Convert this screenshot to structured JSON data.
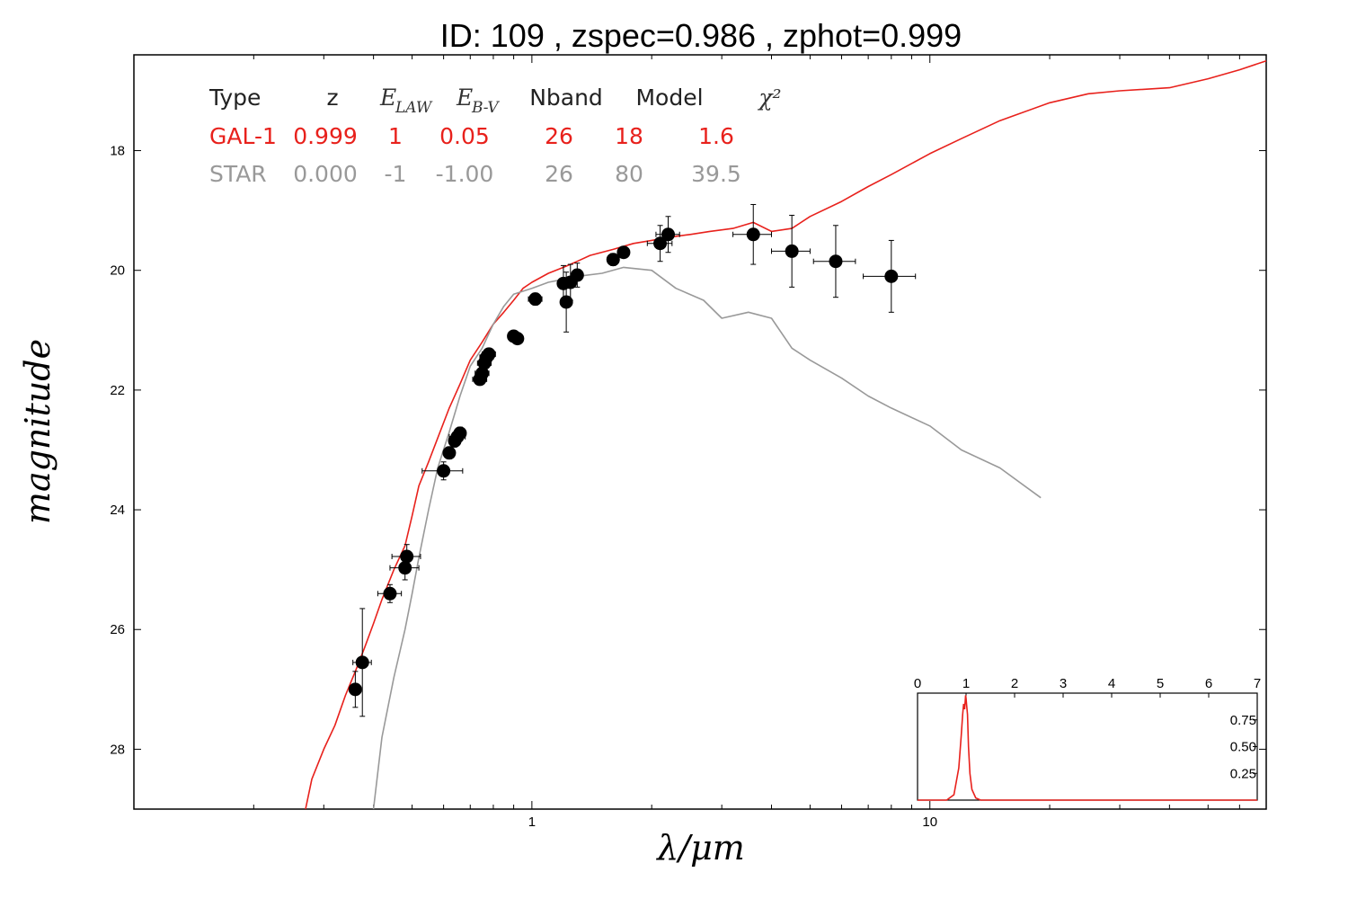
{
  "chart_data": {
    "type": "scatter",
    "title": "ID:  109   , zspec=0.986 , zphot=0.999",
    "xlabel": "λ/μm",
    "ylabel": "magnitude",
    "x_scale": "log",
    "xlim": [
      0.1,
      70
    ],
    "ylim": [
      29,
      16.4
    ],
    "x_tick_labels": [
      "1",
      "10"
    ],
    "x_ticks": [
      1,
      10
    ],
    "y_ticks": [
      18,
      20,
      22,
      24,
      26,
      28
    ],
    "y_tick_labels": [
      "18",
      "20",
      "22",
      "24",
      "26",
      "28"
    ],
    "grid": false,
    "legend_table": {
      "header": [
        "Type",
        "z",
        "E_LAW",
        "E_B-V",
        "Nband",
        "Model",
        "χ²"
      ],
      "rows": [
        {
          "cells": [
            "GAL-1",
            "0.999",
            "1",
            "0.05",
            "26",
            "18",
            "1.6"
          ],
          "color": "#e8211c"
        },
        {
          "cells": [
            "STAR",
            "0.000",
            "-1",
            "-1.00",
            "26",
            "80",
            "39.5"
          ],
          "color": "#999999"
        }
      ]
    },
    "series": [
      {
        "kind": "model",
        "color": "#e8211c",
        "x": [
          0.27,
          0.28,
          0.3,
          0.32,
          0.34,
          0.36,
          0.38,
          0.4,
          0.42,
          0.45,
          0.48,
          0.5,
          0.52,
          0.55,
          0.58,
          0.62,
          0.66,
          0.7,
          0.75,
          0.8,
          0.85,
          0.9,
          0.95,
          1.0,
          1.1,
          1.2,
          1.3,
          1.4,
          1.6,
          1.8,
          2.0,
          2.2,
          2.5,
          2.8,
          3.2,
          3.6,
          4.0,
          4.5,
          5.0,
          6.0,
          7.0,
          8.0,
          10.0,
          12.0,
          15.0,
          20.0,
          25.0,
          30.0,
          40.0,
          50.0,
          60.0,
          70.0
        ],
        "y": [
          29.0,
          28.5,
          28.0,
          27.6,
          27.1,
          26.7,
          26.3,
          25.9,
          25.5,
          25.0,
          24.6,
          24.1,
          23.6,
          23.2,
          22.8,
          22.3,
          21.9,
          21.5,
          21.2,
          20.9,
          20.7,
          20.5,
          20.3,
          20.2,
          20.05,
          19.95,
          19.85,
          19.75,
          19.65,
          19.55,
          19.5,
          19.45,
          19.4,
          19.35,
          19.3,
          19.2,
          19.35,
          19.3,
          19.1,
          18.85,
          18.6,
          18.4,
          18.05,
          17.8,
          17.5,
          17.2,
          17.05,
          17.0,
          16.95,
          16.8,
          16.65,
          16.5
        ]
      },
      {
        "kind": "model",
        "color": "#999999",
        "x": [
          0.4,
          0.42,
          0.45,
          0.48,
          0.5,
          0.52,
          0.55,
          0.58,
          0.62,
          0.66,
          0.7,
          0.75,
          0.8,
          0.85,
          0.9,
          1.0,
          1.1,
          1.2,
          1.3,
          1.5,
          1.7,
          2.0,
          2.3,
          2.7,
          3.0,
          3.5,
          4.0,
          4.5,
          5.0,
          6.0,
          7.0,
          8.0,
          10.0,
          12.0,
          15.0,
          19.0
        ],
        "y": [
          29.0,
          27.8,
          26.8,
          26.0,
          25.4,
          24.8,
          24.0,
          23.3,
          22.7,
          22.1,
          21.6,
          21.3,
          20.9,
          20.6,
          20.4,
          20.3,
          20.2,
          20.15,
          20.1,
          20.05,
          19.95,
          20.0,
          20.3,
          20.5,
          20.8,
          20.7,
          20.8,
          21.3,
          21.5,
          21.8,
          22.1,
          22.3,
          22.6,
          23.0,
          23.3,
          23.8
        ]
      },
      {
        "kind": "observed",
        "color": "#000000",
        "x": [
          0.36,
          0.375,
          0.44,
          0.48,
          0.485,
          0.6,
          0.62,
          0.64,
          0.65,
          0.66,
          0.74,
          0.75,
          0.76,
          0.77,
          0.78,
          0.9,
          0.92,
          1.02,
          1.2,
          1.22,
          1.25,
          1.3,
          1.6,
          1.7,
          2.1,
          2.2,
          3.6,
          4.5,
          5.8,
          8.0
        ],
        "y": [
          27.0,
          26.55,
          25.4,
          24.97,
          24.78,
          23.35,
          23.05,
          22.85,
          22.78,
          22.72,
          21.82,
          21.72,
          21.55,
          21.45,
          21.4,
          21.1,
          21.14,
          20.48,
          20.22,
          20.53,
          20.2,
          20.08,
          19.82,
          19.7,
          19.55,
          19.4,
          19.4,
          19.68,
          19.85,
          20.1
        ],
        "yerr": [
          0.3,
          0.9,
          0.15,
          0.2,
          0.2,
          0.15,
          0.1,
          0.1,
          0.1,
          0.1,
          0.05,
          0.05,
          0.05,
          0.05,
          0.05,
          0.05,
          0.05,
          0.1,
          0.3,
          0.5,
          0.3,
          0.2,
          0.1,
          0.08,
          0.3,
          0.3,
          0.5,
          0.6,
          0.6,
          0.6
        ],
        "xerr_lo": [
          0.012,
          0.02,
          0.03,
          0.04,
          0.04,
          0.07,
          0.02,
          0.02,
          0.03,
          0.02,
          0.03,
          0.03,
          0.03,
          0.03,
          0.03,
          0.02,
          0.02,
          0.04,
          0.03,
          0.03,
          0.03,
          0.03,
          0.04,
          0.05,
          0.15,
          0.15,
          0.4,
          0.5,
          0.7,
          1.2
        ],
        "xerr_hi": [
          0.012,
          0.02,
          0.03,
          0.04,
          0.04,
          0.07,
          0.02,
          0.02,
          0.03,
          0.02,
          0.03,
          0.03,
          0.03,
          0.03,
          0.03,
          0.02,
          0.02,
          0.04,
          0.03,
          0.03,
          0.03,
          0.03,
          0.04,
          0.05,
          0.15,
          0.15,
          0.4,
          0.5,
          0.7,
          1.2
        ]
      }
    ],
    "inset": {
      "type": "line",
      "xlim": [
        0,
        7
      ],
      "ylim": [
        0,
        1.0
      ],
      "x_ticks": [
        0,
        1,
        2,
        3,
        4,
        5,
        6,
        7
      ],
      "x_tick_labels": [
        "0",
        "1",
        "2",
        "3",
        "4",
        "5",
        "6",
        "7"
      ],
      "y_ticks": [
        0.25,
        0.5,
        0.75
      ],
      "y_tick_labels": [
        "0.25",
        "0.50",
        "0.75"
      ],
      "color": "#e8211c",
      "x": [
        0.0,
        0.6,
        0.75,
        0.85,
        0.9,
        0.93,
        0.95,
        0.97,
        0.99,
        1.0,
        1.01,
        1.03,
        1.05,
        1.08,
        1.12,
        1.2,
        1.3,
        7.0
      ],
      "y": [
        0.0,
        0.0,
        0.05,
        0.3,
        0.6,
        0.8,
        0.9,
        0.85,
        0.98,
        0.95,
        0.9,
        0.8,
        0.5,
        0.25,
        0.1,
        0.02,
        0.0,
        0.0
      ]
    }
  }
}
